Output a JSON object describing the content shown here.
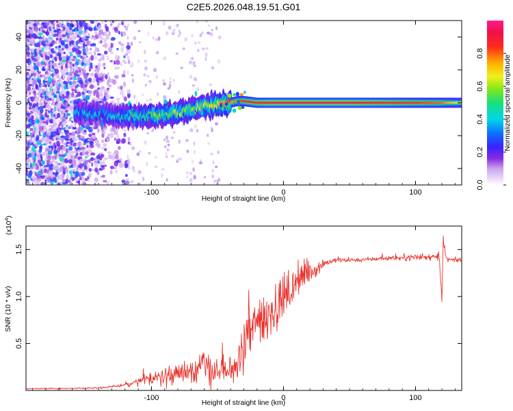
{
  "title": "C2E5.2026.048.19.51.G01",
  "chart_data": [
    {
      "type": "heatmap",
      "name": "spectrogram",
      "xlabel": "Height of straight line (km)",
      "ylabel": "Frequency (Hz)",
      "xlim": [
        -195,
        135
      ],
      "ylim": [
        -50,
        50
      ],
      "xticks": [
        -100,
        0,
        100
      ],
      "xtick_labels": [
        "-100",
        "0",
        "100"
      ],
      "yticks": [
        -40,
        -20,
        0,
        20,
        40
      ],
      "ytick_labels": [
        "-40",
        "-20",
        "0",
        "20",
        "40"
      ],
      "colorbar": {
        "label": "Normalized spectral amplitude",
        "range": [
          0,
          1
        ],
        "ticks": [
          0.0,
          0.2,
          0.4,
          0.6,
          0.8
        ],
        "tick_labels": [
          "0.0",
          "0.2",
          "0.4",
          "0.6",
          "0.8"
        ],
        "colormap": "white-purple-blue-cyan-green-yellow-red-magenta"
      },
      "ridge": {
        "x": [
          -155,
          -130,
          -110,
          -100,
          -90,
          -80,
          -70,
          -60,
          -50,
          -40,
          -35,
          -30,
          -20,
          -10,
          0,
          20,
          50,
          80,
          100,
          120,
          135
        ],
        "frequency": [
          -6,
          -8,
          -8,
          -8,
          -7,
          -6,
          -4,
          -2,
          -1,
          0,
          1,
          1,
          0,
          0,
          0,
          0,
          0,
          0,
          0,
          0,
          0
        ],
        "amplitude": [
          0.22,
          0.28,
          0.35,
          0.42,
          0.45,
          0.5,
          0.45,
          0.5,
          0.62,
          0.72,
          0.8,
          0.85,
          0.9,
          0.95,
          0.95,
          0.95,
          0.95,
          0.9,
          0.85,
          0.8,
          0.6
        ]
      }
    },
    {
      "type": "line",
      "name": "snr",
      "xlabel": "Height of straight line (km)",
      "ylabel": "SNR (10 * v/v)",
      "y_multiplier": "(x10",
      "y_multiplier_exp": "4",
      "xlim": [
        -195,
        135
      ],
      "ylim": [
        0,
        1.75
      ],
      "xticks": [
        -100,
        0,
        100
      ],
      "xtick_labels": [
        "-100",
        "0",
        "100"
      ],
      "yticks": [
        0.5,
        1.0,
        1.5
      ],
      "ytick_labels": [
        "0.5",
        "1.0",
        "1.5"
      ],
      "color": "#e8312b",
      "series": [
        {
          "name": "SNR",
          "x": [
            -195,
            -170,
            -150,
            -135,
            -125,
            -115,
            -105,
            -95,
            -85,
            -75,
            -68,
            -62,
            -55,
            -48,
            -42,
            -38,
            -34,
            -30,
            -27,
            -24,
            -20,
            -15,
            -10,
            -5,
            0,
            5,
            10,
            15,
            20,
            25,
            30,
            35,
            40,
            50,
            60,
            70,
            80,
            90,
            100,
            105,
            110,
            115,
            118,
            120,
            121,
            123,
            125,
            130,
            135
          ],
          "y": [
            0.02,
            0.02,
            0.025,
            0.03,
            0.05,
            0.07,
            0.11,
            0.14,
            0.16,
            0.19,
            0.23,
            0.27,
            0.22,
            0.2,
            0.2,
            0.24,
            0.3,
            0.42,
            0.55,
            0.65,
            0.72,
            0.78,
            0.85,
            0.9,
            0.98,
            1.05,
            1.15,
            1.2,
            1.25,
            1.3,
            1.35,
            1.37,
            1.38,
            1.39,
            1.39,
            1.4,
            1.41,
            1.41,
            1.42,
            1.42,
            1.42,
            1.42,
            1.45,
            0.98,
            1.62,
            1.4,
            1.39,
            1.39,
            1.38
          ],
          "noise": [
            0.005,
            0.005,
            0.005,
            0.01,
            0.015,
            0.03,
            0.05,
            0.07,
            0.09,
            0.12,
            0.15,
            0.2,
            0.15,
            0.12,
            0.12,
            0.15,
            0.18,
            0.25,
            0.3,
            0.32,
            0.32,
            0.3,
            0.28,
            0.25,
            0.22,
            0.2,
            0.17,
            0.14,
            0.1,
            0.07,
            0.05,
            0.03,
            0.025,
            0.02,
            0.02,
            0.02,
            0.025,
            0.025,
            0.03,
            0.03,
            0.035,
            0.04,
            0.05,
            0.04,
            0.05,
            0.03,
            0.02,
            0.02,
            0.02
          ]
        }
      ]
    }
  ]
}
